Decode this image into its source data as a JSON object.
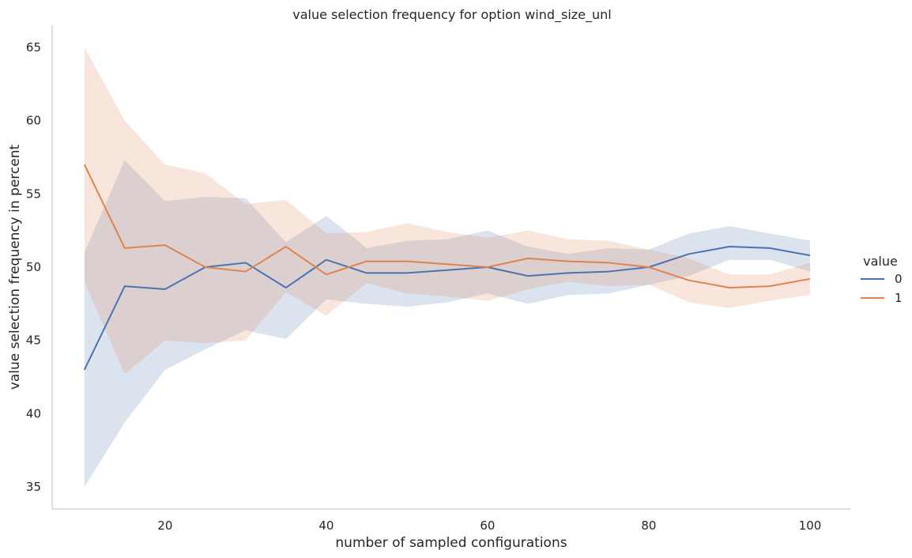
{
  "chart_data": {
    "type": "line",
    "title": "value selection frequency for option wind_size_unl",
    "xlabel": "number of sampled configurations",
    "ylabel": "value selection frequency in percent",
    "xlim": [
      6,
      105
    ],
    "ylim": [
      33.5,
      66.5
    ],
    "xticks": [
      20,
      40,
      60,
      80,
      100
    ],
    "yticks": [
      35,
      40,
      45,
      50,
      55,
      60,
      65
    ],
    "grid": false,
    "legend": {
      "title": "value",
      "placement": "right"
    },
    "x": [
      10,
      15,
      20,
      25,
      30,
      35,
      40,
      45,
      50,
      55,
      60,
      65,
      70,
      75,
      80,
      85,
      90,
      95,
      100
    ],
    "series": [
      {
        "name": "0",
        "color": "#4c72b0",
        "values": [
          43.0,
          48.7,
          48.5,
          50.0,
          50.3,
          48.6,
          50.5,
          49.6,
          49.6,
          49.8,
          50.0,
          49.4,
          49.6,
          49.7,
          50.0,
          50.9,
          51.4,
          51.3,
          50.8
        ],
        "ci_low": [
          35.0,
          39.4,
          43.0,
          44.4,
          45.7,
          45.1,
          47.8,
          47.5,
          47.3,
          47.6,
          48.2,
          47.5,
          48.1,
          48.2,
          48.8,
          49.4,
          50.5,
          50.5,
          49.7
        ],
        "ci_high": [
          51.0,
          57.3,
          54.5,
          54.8,
          54.7,
          51.7,
          53.5,
          51.3,
          51.8,
          51.9,
          52.5,
          51.4,
          50.9,
          51.3,
          51.2,
          52.3,
          52.8,
          52.3,
          51.8
        ]
      },
      {
        "name": "1",
        "color": "#dd8452",
        "values": [
          57.0,
          51.3,
          51.5,
          50.0,
          49.7,
          51.4,
          49.5,
          50.4,
          50.4,
          50.2,
          50.0,
          50.6,
          50.4,
          50.3,
          50.0,
          49.1,
          48.6,
          48.7,
          49.2
        ],
        "ci_low": [
          49.0,
          42.7,
          45.0,
          44.8,
          45.0,
          48.3,
          46.7,
          48.9,
          48.2,
          48.0,
          47.7,
          48.5,
          49.0,
          48.7,
          48.8,
          47.6,
          47.2,
          47.7,
          48.1
        ],
        "ci_high": [
          65.0,
          60.0,
          57.0,
          56.4,
          54.3,
          54.6,
          52.3,
          52.4,
          53.0,
          52.4,
          52.0,
          52.5,
          51.9,
          51.8,
          51.2,
          50.6,
          49.5,
          49.5,
          50.3
        ]
      }
    ]
  }
}
